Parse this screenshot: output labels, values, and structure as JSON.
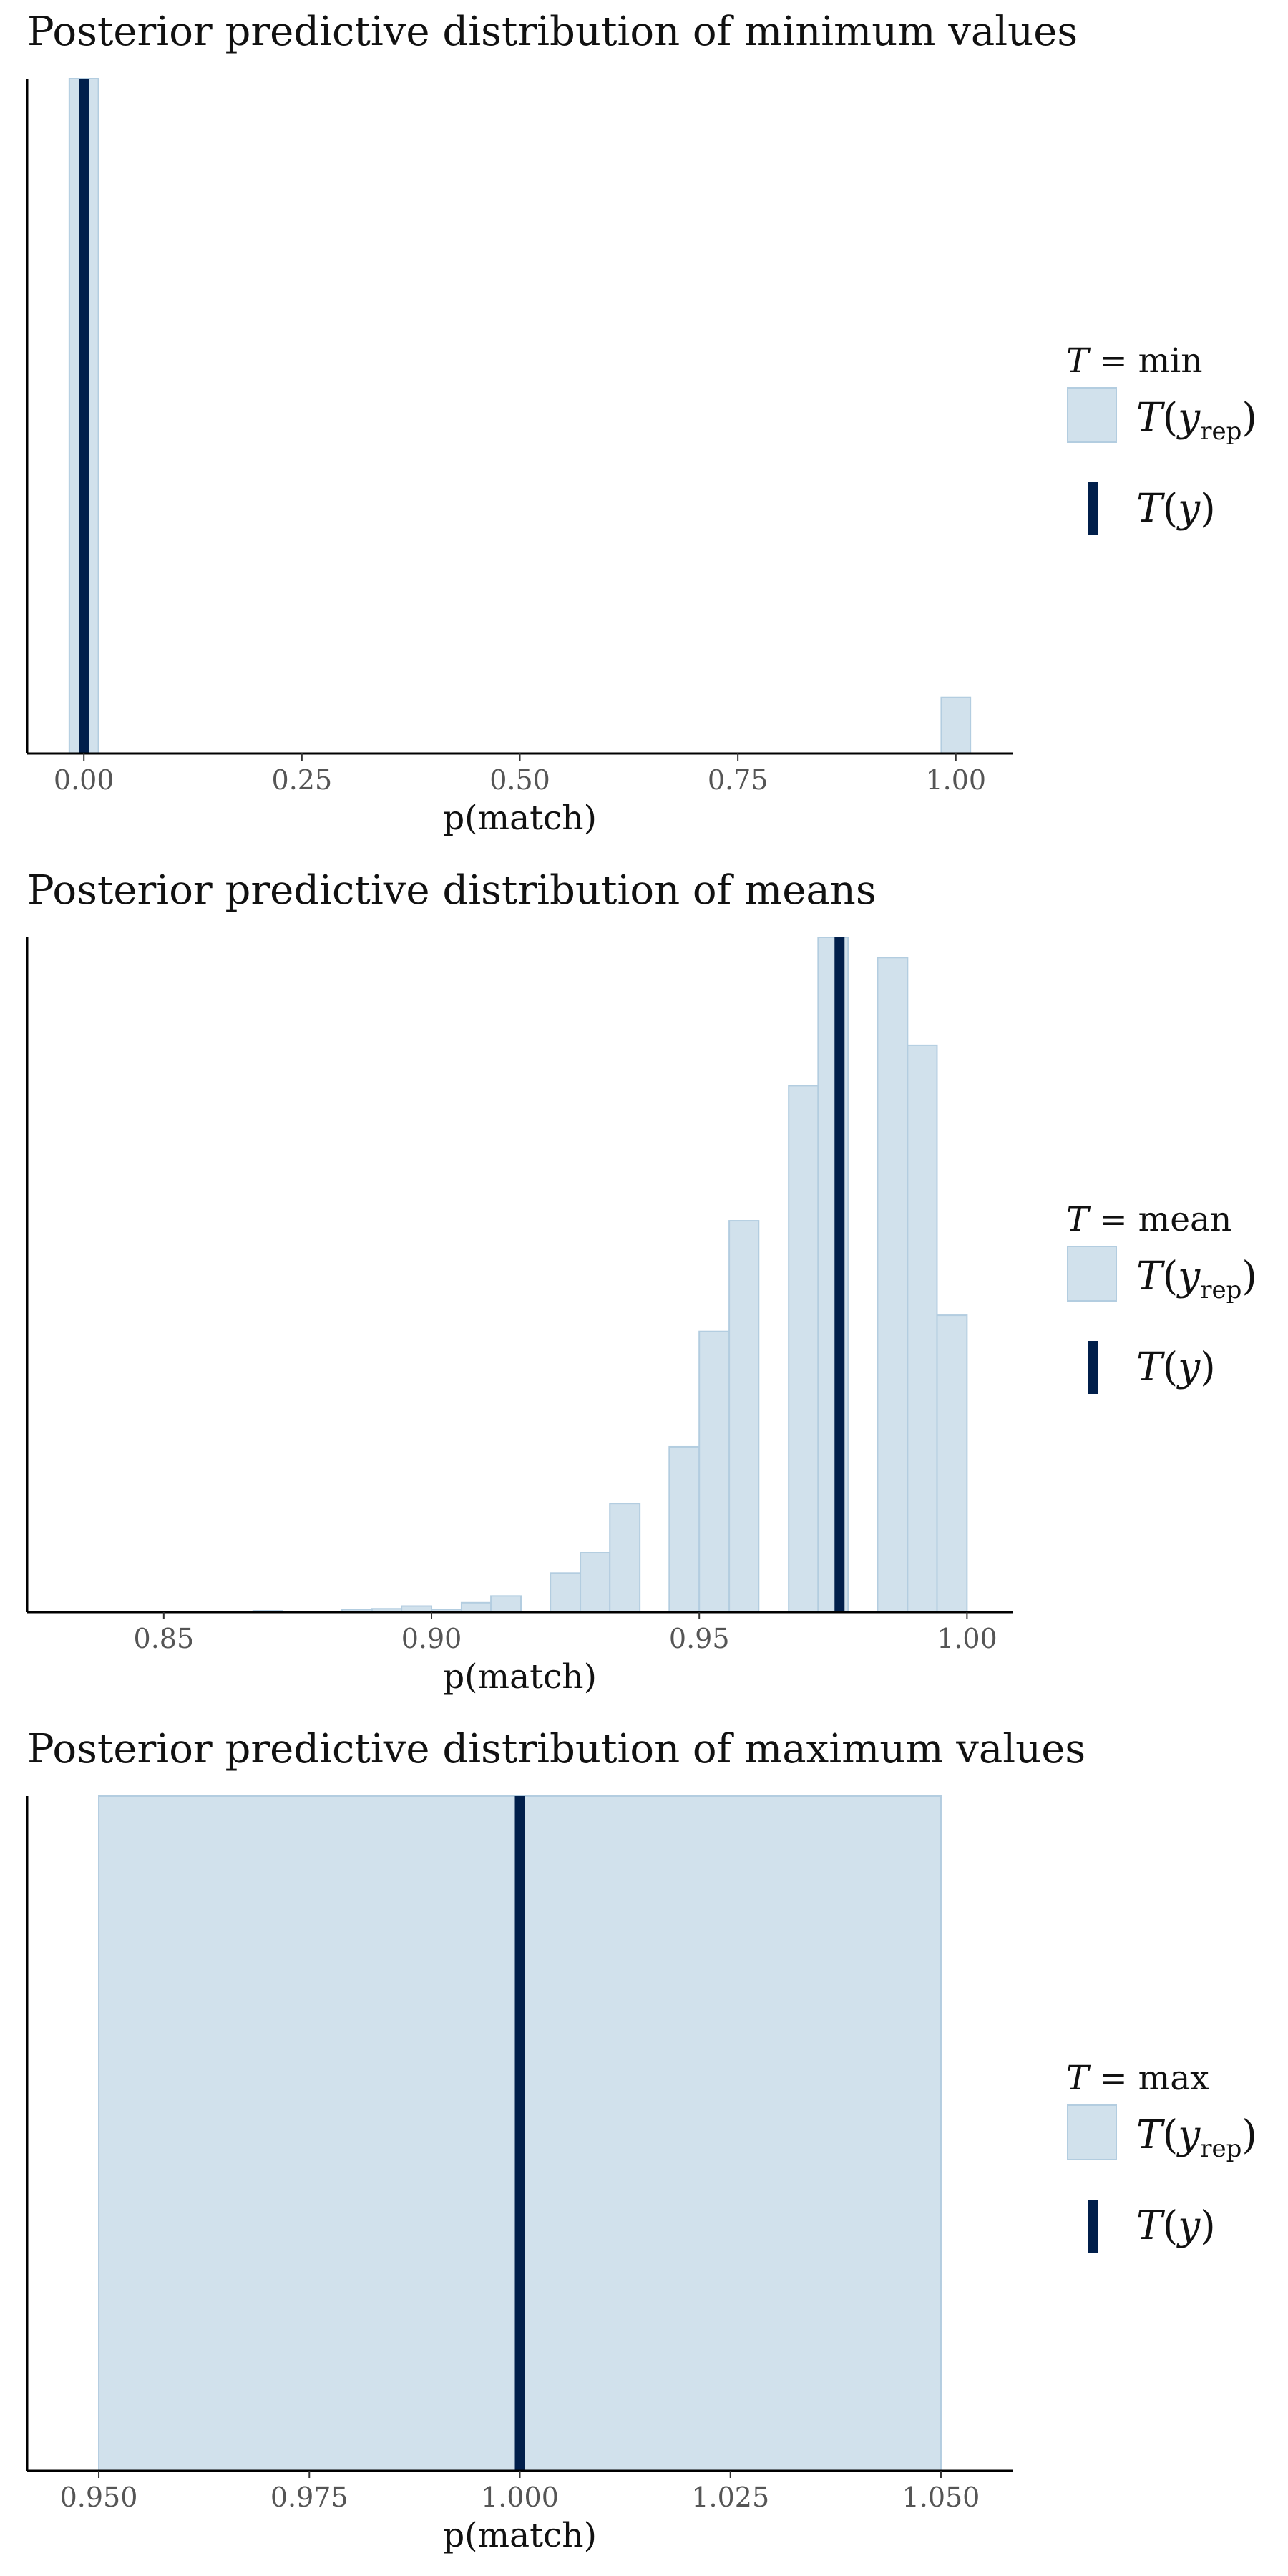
{
  "colors": {
    "rep_fill": "#d1e1ec",
    "rep_stroke": "#b3cde0",
    "stat_line": "#011f4b",
    "axis": "#000000"
  },
  "chart_data": [
    {
      "type": "bar",
      "title": "Posterior predictive distribution of minimum values",
      "xlabel": "p(match)",
      "xlim": [
        -0.065,
        1.065
      ],
      "xticks": [
        "0.00",
        "0.25",
        "0.50",
        "0.75",
        "1.00"
      ],
      "xtick_values": [
        0,
        0.25,
        0.5,
        0.75,
        1.0
      ],
      "legend": {
        "title": "T = min",
        "stat_name": "min",
        "rep_label": "T(y_rep)",
        "obs_label": "T(y)",
        "position": "right"
      },
      "bins": [
        {
          "x0": -0.0167,
          "x1": 0.0167,
          "count": 1.0
        },
        {
          "x0": 0.9833,
          "x1": 1.0167,
          "count": 0.083
        }
      ],
      "observed": 0.0
    },
    {
      "type": "bar",
      "title": "Posterior predictive distribution of means",
      "xlabel": "p(match)",
      "xlim": [
        0.8245,
        1.0085
      ],
      "xticks": [
        "0.85",
        "0.90",
        "0.95",
        "1.00"
      ],
      "xtick_values": [
        0.85,
        0.9,
        0.95,
        1.0
      ],
      "legend": {
        "title": "T = mean",
        "stat_name": "mean",
        "rep_label": "T(y_rep)",
        "obs_label": "T(y)",
        "position": "right"
      },
      "bins": [
        {
          "x0": 0.8333,
          "x1": 0.8389,
          "count": 0.001
        },
        {
          "x0": 0.85,
          "x1": 0.8556,
          "count": 0.001
        },
        {
          "x0": 0.8667,
          "x1": 0.8722,
          "count": 0.002
        },
        {
          "x0": 0.8833,
          "x1": 0.8889,
          "count": 0.004
        },
        {
          "x0": 0.8889,
          "x1": 0.8944,
          "count": 0.005
        },
        {
          "x0": 0.8944,
          "x1": 0.9,
          "count": 0.009
        },
        {
          "x0": 0.9,
          "x1": 0.9056,
          "count": 0.004
        },
        {
          "x0": 0.9056,
          "x1": 0.9111,
          "count": 0.014
        },
        {
          "x0": 0.9111,
          "x1": 0.9167,
          "count": 0.024
        },
        {
          "x0": 0.9222,
          "x1": 0.9278,
          "count": 0.058
        },
        {
          "x0": 0.9278,
          "x1": 0.9333,
          "count": 0.088
        },
        {
          "x0": 0.9333,
          "x1": 0.9389,
          "count": 0.161
        },
        {
          "x0": 0.9444,
          "x1": 0.95,
          "count": 0.245
        },
        {
          "x0": 0.95,
          "x1": 0.9556,
          "count": 0.416
        },
        {
          "x0": 0.9556,
          "x1": 0.9611,
          "count": 0.58
        },
        {
          "x0": 0.9667,
          "x1": 0.9722,
          "count": 0.78
        },
        {
          "x0": 0.9722,
          "x1": 0.9778,
          "count": 1.0
        },
        {
          "x0": 0.9833,
          "x1": 0.9889,
          "count": 0.97
        },
        {
          "x0": 0.9889,
          "x1": 0.9944,
          "count": 0.84
        },
        {
          "x0": 0.9944,
          "x1": 1.0,
          "count": 0.44
        }
      ],
      "observed": 0.9762
    },
    {
      "type": "bar",
      "title": "Posterior predictive distribution of maximum values",
      "xlabel": "p(match)",
      "xlim": [
        0.9415,
        1.0585
      ],
      "xticks": [
        "0.950",
        "0.975",
        "1.000",
        "1.025",
        "1.050"
      ],
      "xtick_values": [
        0.95,
        0.975,
        1.0,
        1.025,
        1.05
      ],
      "legend": {
        "title": "T = max",
        "stat_name": "max",
        "rep_label": "T(y_rep)",
        "obs_label": "T(y)",
        "position": "right"
      },
      "bins": [
        {
          "x0": 0.95,
          "x1": 1.05,
          "count": 1.0
        }
      ],
      "observed": 1.0
    }
  ]
}
